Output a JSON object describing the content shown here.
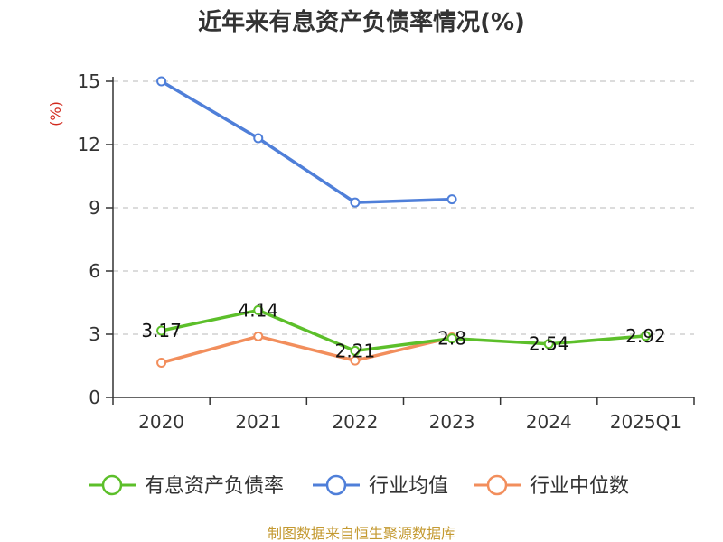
{
  "chart_data": {
    "type": "line",
    "title": "近年来有息资产负债率情况(%)",
    "ylabel": "(%)",
    "xlabel": "",
    "categories": [
      "2020",
      "2021",
      "2022",
      "2023",
      "2024",
      "2025Q1"
    ],
    "yticks": [
      "0",
      "3",
      "6",
      "9",
      "12",
      "15"
    ],
    "ylim": [
      0,
      15
    ],
    "grid": true,
    "legend_position": "bottom",
    "series": [
      {
        "name": "有息资产负债率",
        "color": "#5cbf2a",
        "values": [
          3.17,
          4.14,
          2.21,
          2.8,
          2.54,
          2.92
        ],
        "labels": [
          "3.17",
          "4.14",
          "2.21",
          "2.8",
          "2.54",
          "2.92"
        ]
      },
      {
        "name": "行业均值",
        "color": "#4f7fd9",
        "values": [
          15.0,
          12.3,
          9.25,
          9.4,
          null,
          null
        ]
      },
      {
        "name": "行业中位数",
        "color": "#f28e5c",
        "values": [
          1.65,
          2.9,
          1.75,
          2.85,
          null,
          null
        ]
      }
    ],
    "source": "制图数据来自恒生聚源数据库"
  }
}
